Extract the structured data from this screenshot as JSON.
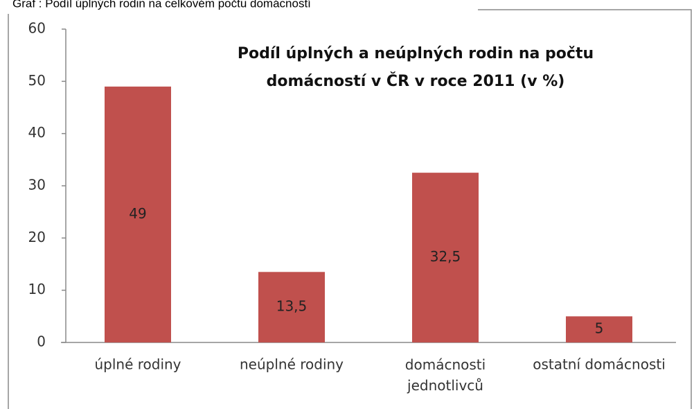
{
  "caption": "Graf : Podíl úplných rodin na celkovém počtu domácností",
  "chart_data": {
    "type": "bar",
    "title": [
      "Podíl úplných a neúplných rodin na počtu",
      "domácností v ČR v roce  2011 (v %)"
    ],
    "categories": [
      "úplné rodiny",
      "neúplné rodiny",
      "domácnosti jednotlivců",
      "ostatní domácnosti"
    ],
    "values": [
      49,
      13.5,
      32.5,
      5
    ],
    "value_labels": [
      "49",
      "13,5",
      "32,5",
      "5"
    ],
    "color": "#c0504d",
    "ylim": [
      0,
      60
    ],
    "yticks": [
      0,
      10,
      20,
      30,
      40,
      50,
      60
    ],
    "grid": false
  }
}
